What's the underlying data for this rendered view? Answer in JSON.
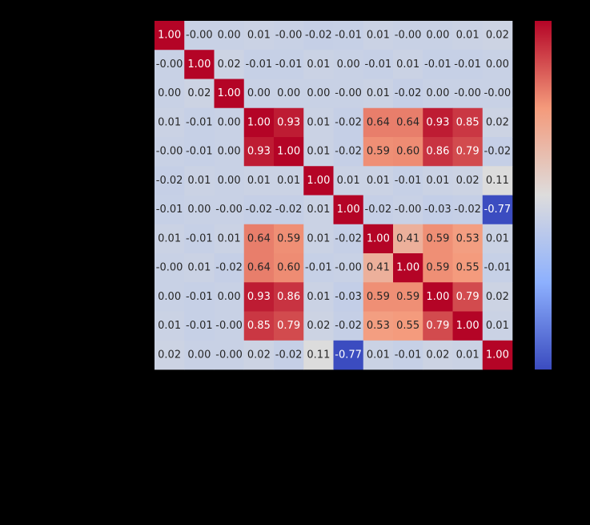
{
  "chart_data": {
    "type": "heatmap",
    "title": "",
    "xlabel": "",
    "ylabel": "",
    "x_tick_labels": [],
    "y_tick_labels": [],
    "colormap": "coolwarm",
    "value_range": [
      -0.77,
      1.0
    ],
    "annotation_format": "0.00",
    "colorbar": "right",
    "colors": {
      "background": "#000000",
      "low": "#3b4cc0",
      "mid": "#dddcdc",
      "high": "#b40426",
      "text_dark": "#262626",
      "text_light": "#ffffff"
    },
    "values": [
      [
        1.0,
        -0.0,
        0.0,
        0.01,
        -0.0,
        -0.02,
        -0.01,
        0.01,
        -0.0,
        0.0,
        0.01,
        0.02
      ],
      [
        -0.0,
        1.0,
        0.02,
        -0.01,
        -0.01,
        0.01,
        0.0,
        -0.01,
        0.01,
        -0.01,
        -0.01,
        0.0
      ],
      [
        0.0,
        0.02,
        1.0,
        0.0,
        0.0,
        0.0,
        -0.0,
        0.01,
        -0.02,
        0.0,
        -0.0,
        -0.0
      ],
      [
        0.01,
        -0.01,
        0.0,
        1.0,
        0.93,
        0.01,
        -0.02,
        0.64,
        0.64,
        0.93,
        0.85,
        0.02
      ],
      [
        -0.0,
        -0.01,
        0.0,
        0.93,
        1.0,
        0.01,
        -0.02,
        0.59,
        0.6,
        0.86,
        0.79,
        -0.02
      ],
      [
        -0.02,
        0.01,
        0.0,
        0.01,
        0.01,
        1.0,
        0.01,
        0.01,
        -0.01,
        0.01,
        0.02,
        0.11
      ],
      [
        -0.01,
        0.0,
        -0.0,
        -0.02,
        -0.02,
        0.01,
        1.0,
        -0.02,
        -0.0,
        -0.03,
        -0.02,
        -0.77
      ],
      [
        0.01,
        -0.01,
        0.01,
        0.64,
        0.59,
        0.01,
        -0.02,
        1.0,
        0.41,
        0.59,
        0.53,
        0.01
      ],
      [
        -0.0,
        0.01,
        -0.02,
        0.64,
        0.6,
        -0.01,
        -0.0,
        0.41,
        1.0,
        0.59,
        0.55,
        -0.01
      ],
      [
        0.0,
        -0.01,
        0.0,
        0.93,
        0.86,
        0.01,
        -0.03,
        0.59,
        0.59,
        1.0,
        0.79,
        0.02
      ],
      [
        0.01,
        -0.01,
        -0.0,
        0.85,
        0.79,
        0.02,
        -0.02,
        0.53,
        0.55,
        0.79,
        1.0,
        0.01
      ],
      [
        0.02,
        0.0,
        -0.0,
        0.02,
        -0.02,
        0.11,
        -0.77,
        0.01,
        -0.01,
        0.02,
        0.01,
        1.0
      ]
    ],
    "labels": [
      [
        "1.00",
        "-0.00",
        "0.00",
        "0.01",
        "-0.00",
        "-0.02",
        "-0.01",
        "0.01",
        "-0.00",
        "0.00",
        "0.01",
        "0.02"
      ],
      [
        "-0.00",
        "1.00",
        "0.02",
        "-0.01",
        "-0.01",
        "0.01",
        "0.00",
        "-0.01",
        "0.01",
        "-0.01",
        "-0.01",
        "0.00"
      ],
      [
        "0.00",
        "0.02",
        "1.00",
        "0.00",
        "0.00",
        "0.00",
        "-0.00",
        "0.01",
        "-0.02",
        "0.00",
        "-0.00",
        "-0.00"
      ],
      [
        "0.01",
        "-0.01",
        "0.00",
        "1.00",
        "0.93",
        "0.01",
        "-0.02",
        "0.64",
        "0.64",
        "0.93",
        "0.85",
        "0.02"
      ],
      [
        "-0.00",
        "-0.01",
        "0.00",
        "0.93",
        "1.00",
        "0.01",
        "-0.02",
        "0.59",
        "0.60",
        "0.86",
        "0.79",
        "-0.02"
      ],
      [
        "-0.02",
        "0.01",
        "0.00",
        "0.01",
        "0.01",
        "1.00",
        "0.01",
        "0.01",
        "-0.01",
        "0.01",
        "0.02",
        "0.11"
      ],
      [
        "-0.01",
        "0.00",
        "-0.00",
        "-0.02",
        "-0.02",
        "0.01",
        "1.00",
        "-0.02",
        "-0.00",
        "-0.03",
        "-0.02",
        "-0.77"
      ],
      [
        "0.01",
        "-0.01",
        "0.01",
        "0.64",
        "0.59",
        "0.01",
        "-0.02",
        "1.00",
        "0.41",
        "0.59",
        "0.53",
        "0.01"
      ],
      [
        "-0.00",
        "0.01",
        "-0.02",
        "0.64",
        "0.60",
        "-0.01",
        "-0.00",
        "0.41",
        "1.00",
        "0.59",
        "0.55",
        "-0.01"
      ],
      [
        "0.00",
        "-0.01",
        "0.00",
        "0.93",
        "0.86",
        "0.01",
        "-0.03",
        "0.59",
        "0.59",
        "1.00",
        "0.79",
        "0.02"
      ],
      [
        "0.01",
        "-0.01",
        "-0.00",
        "0.85",
        "0.79",
        "0.02",
        "-0.02",
        "0.53",
        "0.55",
        "0.79",
        "1.00",
        "0.01"
      ],
      [
        "0.02",
        "0.00",
        "-0.00",
        "0.02",
        "-0.02",
        "0.11",
        "-0.77",
        "0.01",
        "-0.01",
        "0.02",
        "0.01",
        "1.00"
      ]
    ]
  }
}
